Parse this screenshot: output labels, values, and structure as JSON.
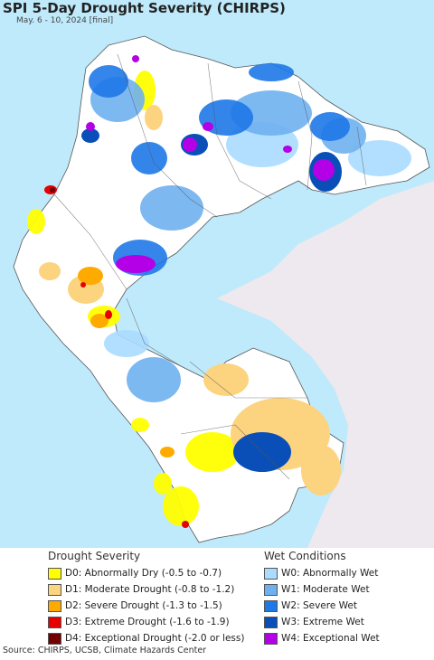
{
  "header": {
    "title": "SPI 5-Day Drought Severity (CHIRPS)",
    "subtitle": "May. 6 - 10, 2024 [final]"
  },
  "legend": {
    "drought": {
      "heading": "Drought Severity",
      "items": [
        {
          "label": "D0: Abnormally Dry (-0.5 to -0.7)",
          "color": "#ffff00"
        },
        {
          "label": "D1: Moderate Drought (-0.8 to -1.2)",
          "color": "#fcd37f"
        },
        {
          "label": "D2: Severe Drought (-1.3 to -1.5)",
          "color": "#ffaa00"
        },
        {
          "label": "D3: Extreme Drought (-1.6 to -1.9)",
          "color": "#e60000"
        },
        {
          "label": "D4: Exceptional Drought (-2.0 or less)",
          "color": "#730000"
        }
      ]
    },
    "wet": {
      "heading": "Wet Conditions",
      "items": [
        {
          "label": "W0: Abnormally Wet",
          "color": "#aadcff"
        },
        {
          "label": "W1: Moderate Wet",
          "color": "#6fb1f0"
        },
        {
          "label": "W2: Severe Wet",
          "color": "#1f78e8"
        },
        {
          "label": "W3: Extreme Wet",
          "color": "#0a4fb8"
        },
        {
          "label": "W4: Exceptional Wet",
          "color": "#b400e6"
        }
      ]
    }
  },
  "source": "Source: CHIRPS, UCSB, Climate Hazards Center",
  "colors": {
    "ocean": "#bfeafb",
    "land_out": "#ede9ee",
    "land_in": "#ffffff",
    "border": "#555555"
  }
}
